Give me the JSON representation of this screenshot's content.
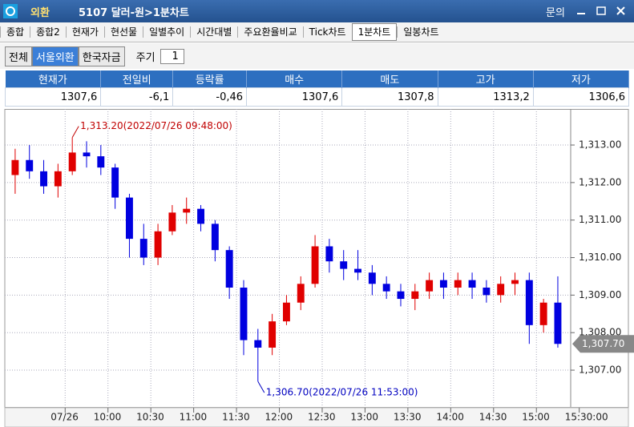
{
  "header": {
    "badge": "외환",
    "title": "5107 달러-원>1분차트",
    "help": "문의"
  },
  "tabs": {
    "items": [
      "종합",
      "종합2",
      "현재가",
      "현선물",
      "일별추이",
      "시간대별",
      "주요환율비교",
      "Tick차트",
      "1분차트",
      "일봉차트"
    ],
    "active": 8
  },
  "toolbar": {
    "buttons": [
      "전체",
      "서울외환",
      "한국자금"
    ],
    "active": 1,
    "period_label": "주기",
    "period_value": "1"
  },
  "quote": {
    "headers": [
      "현재가",
      "전일비",
      "등락률",
      "매수",
      "매도",
      "고가",
      "저가"
    ],
    "values": [
      "1307,6",
      "-6,1",
      "-0,46",
      "1307,6",
      "1307,8",
      "1313,2",
      "1306,6"
    ]
  },
  "chart_data": {
    "type": "candlestick",
    "open": [
      1312.2,
      1312.6,
      1312.3,
      1311.9,
      1312.3,
      1312.8,
      1312.7,
      1312.4,
      1311.6,
      1310.5,
      1310.0,
      1310.7,
      1311.2,
      1311.3,
      1310.9,
      1310.2,
      1309.2,
      1307.8,
      1307.6,
      1308.3,
      1308.8,
      1309.3,
      1310.3,
      1309.9,
      1309.7,
      1309.6,
      1309.3,
      1309.1,
      1308.9,
      1309.1,
      1309.4,
      1309.2,
      1309.4,
      1309.2,
      1309.0,
      1309.3,
      1309.4,
      1308.2,
      1308.8
    ],
    "high": [
      1312.9,
      1313.0,
      1312.6,
      1312.5,
      1313.2,
      1313.1,
      1313.0,
      1312.5,
      1311.7,
      1310.9,
      1310.9,
      1311.4,
      1311.6,
      1311.4,
      1311.0,
      1310.3,
      1309.4,
      1308.1,
      1308.5,
      1309.0,
      1309.5,
      1310.6,
      1310.5,
      1310.2,
      1310.2,
      1309.8,
      1309.5,
      1309.3,
      1309.3,
      1309.6,
      1309.6,
      1309.6,
      1309.6,
      1309.4,
      1309.5,
      1309.6,
      1309.6,
      1308.9,
      1309.5
    ],
    "low": [
      1311.7,
      1312.1,
      1311.7,
      1311.6,
      1312.2,
      1312.4,
      1312.2,
      1311.3,
      1310.0,
      1309.8,
      1309.8,
      1310.6,
      1310.9,
      1310.7,
      1309.9,
      1308.9,
      1307.4,
      1306.7,
      1307.4,
      1308.2,
      1308.6,
      1309.2,
      1309.6,
      1309.4,
      1309.4,
      1309.0,
      1308.9,
      1308.7,
      1308.6,
      1308.9,
      1308.9,
      1309.0,
      1308.9,
      1308.8,
      1308.8,
      1309.0,
      1307.7,
      1308.0,
      1307.6
    ],
    "close": [
      1312.6,
      1312.3,
      1311.9,
      1312.3,
      1312.8,
      1312.7,
      1312.4,
      1311.6,
      1310.5,
      1310.0,
      1310.7,
      1311.2,
      1311.3,
      1310.9,
      1310.2,
      1309.2,
      1307.8,
      1307.6,
      1308.3,
      1308.8,
      1309.3,
      1310.3,
      1309.9,
      1309.7,
      1309.6,
      1309.3,
      1309.1,
      1308.9,
      1309.1,
      1309.4,
      1309.2,
      1309.4,
      1309.2,
      1309.0,
      1309.3,
      1309.4,
      1308.2,
      1308.8,
      1307.7
    ],
    "up_color": "#e00000",
    "down_color": "#0000e0",
    "xlim": [
      0,
      39.4
    ],
    "xticks": [
      {
        "value": 4,
        "label": "07/26"
      },
      {
        "value": 7,
        "label": "10:00"
      },
      {
        "value": 10,
        "label": "10:30"
      },
      {
        "value": 13,
        "label": "11:00"
      },
      {
        "value": 16,
        "label": "11:30"
      },
      {
        "value": 19,
        "label": "12:00"
      },
      {
        "value": 22,
        "label": "12:30"
      },
      {
        "value": 25,
        "label": "13:00"
      },
      {
        "value": 28,
        "label": "13:30"
      },
      {
        "value": 31,
        "label": "14:00"
      },
      {
        "value": 34,
        "label": "14:30"
      },
      {
        "value": 37,
        "label": "15:00"
      },
      {
        "value": 40,
        "label": "15:30:00"
      }
    ],
    "ylim": [
      1306.04,
      1313.94
    ],
    "yticks": [
      {
        "value": 1307,
        "label": "1,307.00"
      },
      {
        "value": 1308,
        "label": "1,308.00"
      },
      {
        "value": 1309,
        "label": "1,309.00"
      },
      {
        "value": 1310,
        "label": "1,310.00"
      },
      {
        "value": 1311,
        "label": "1,311.00"
      },
      {
        "value": 1312,
        "label": "1,312.00"
      },
      {
        "value": 1313,
        "label": "1,313.00"
      }
    ],
    "grid": true,
    "annotations": [
      {
        "text": "1,313.20(2022/07/26 09:48:00)",
        "value": 1313.2,
        "color": "#c00000"
      },
      {
        "text": "1,306.70(2022/07/26 11:53:00)",
        "value": 1306.7,
        "color": "#0000c0"
      }
    ],
    "last": {
      "value": 1307.7,
      "label": "1,307.70"
    }
  }
}
